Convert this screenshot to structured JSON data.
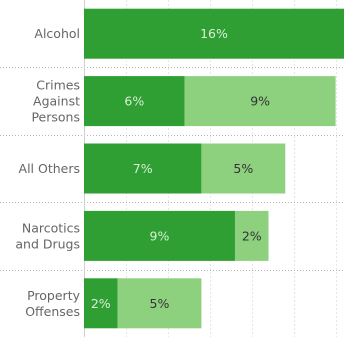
{
  "chart_data": {
    "type": "bar",
    "orientation": "horizontal",
    "stacked": true,
    "categories": [
      [
        "Alcohol"
      ],
      [
        "Crimes",
        "Against",
        "Persons"
      ],
      [
        "All Others"
      ],
      [
        "Narcotics",
        "and Drugs"
      ],
      [
        "Property",
        "Offenses"
      ]
    ],
    "series": [
      {
        "values": [
          16,
          6,
          7,
          9,
          2
        ],
        "labels": [
          "16%",
          "6%",
          "7%",
          "9%",
          "2%"
        ],
        "color": "#2f9e33"
      },
      {
        "values": [
          0,
          9,
          5,
          2,
          5
        ],
        "labels": [
          "",
          "9%",
          "5%",
          "2%",
          "5%"
        ],
        "color": "#8dd17e"
      }
    ],
    "xlim": [
      0,
      15.5
    ],
    "grid": true,
    "legend": "none"
  }
}
